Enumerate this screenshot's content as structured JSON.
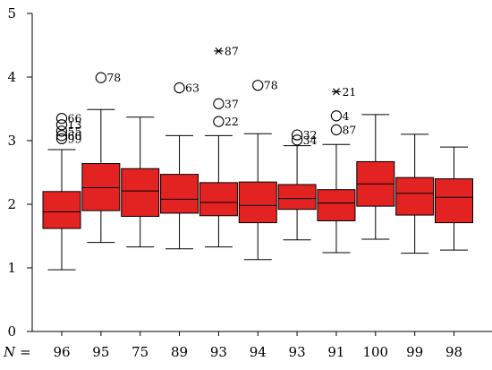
{
  "chart_data": {
    "type": "boxplot",
    "title": "",
    "xlabel": "",
    "ylabel": "",
    "ylim": [
      0,
      5
    ],
    "yticks": [
      "0",
      "1",
      "2",
      "3",
      "4",
      "5"
    ],
    "n_prefix": "N",
    "n_equals": "=",
    "box_color": "#e32222",
    "groups": [
      {
        "n": "96",
        "whisker_low": 0.97,
        "q1": 1.62,
        "median": 1.88,
        "q3": 2.2,
        "whisker_high": 2.86,
        "outliers": [
          {
            "y": 3.35,
            "label": "66",
            "marker": "circle"
          },
          {
            "y": 3.25,
            "label": "13",
            "marker": "circle"
          },
          {
            "y": 3.15,
            "label": "55",
            "marker": "circle"
          },
          {
            "y": 3.08,
            "label": "60",
            "marker": "circle"
          },
          {
            "y": 3.03,
            "label": "99",
            "marker": "circle"
          }
        ]
      },
      {
        "n": "95",
        "whisker_low": 1.4,
        "q1": 1.9,
        "median": 2.26,
        "q3": 2.64,
        "whisker_high": 3.49,
        "outliers": [
          {
            "y": 3.99,
            "label": "78",
            "marker": "circle"
          }
        ]
      },
      {
        "n": "75",
        "whisker_low": 1.33,
        "q1": 1.81,
        "median": 2.21,
        "q3": 2.56,
        "whisker_high": 3.37,
        "outliers": []
      },
      {
        "n": "89",
        "whisker_low": 1.3,
        "q1": 1.86,
        "median": 2.08,
        "q3": 2.47,
        "whisker_high": 3.08,
        "outliers": [
          {
            "y": 3.83,
            "label": "63",
            "marker": "circle"
          }
        ]
      },
      {
        "n": "93",
        "whisker_low": 1.33,
        "q1": 1.82,
        "median": 2.03,
        "q3": 2.34,
        "whisker_high": 3.08,
        "outliers": [
          {
            "y": 4.41,
            "label": "87",
            "marker": "star"
          },
          {
            "y": 3.58,
            "label": "37",
            "marker": "circle"
          },
          {
            "y": 3.3,
            "label": "22",
            "marker": "circle"
          }
        ]
      },
      {
        "n": "94",
        "whisker_low": 1.13,
        "q1": 1.71,
        "median": 1.98,
        "q3": 2.35,
        "whisker_high": 3.11,
        "outliers": [
          {
            "y": 3.87,
            "label": "78",
            "marker": "circle"
          }
        ]
      },
      {
        "n": "93",
        "whisker_low": 1.44,
        "q1": 1.92,
        "median": 2.09,
        "q3": 2.31,
        "whisker_high": 2.92,
        "outliers": [
          {
            "y": 3.09,
            "label": "32",
            "marker": "circle"
          },
          {
            "y": 3.01,
            "label": "34",
            "marker": "circle"
          }
        ]
      },
      {
        "n": "91",
        "whisker_low": 1.24,
        "q1": 1.74,
        "median": 2.02,
        "q3": 2.23,
        "whisker_high": 2.94,
        "outliers": [
          {
            "y": 3.77,
            "label": "21",
            "marker": "star"
          },
          {
            "y": 3.39,
            "label": "4",
            "marker": "circle"
          },
          {
            "y": 3.17,
            "label": "87",
            "marker": "circle"
          }
        ]
      },
      {
        "n": "100",
        "whisker_low": 1.45,
        "q1": 1.97,
        "median": 2.32,
        "q3": 2.67,
        "whisker_high": 3.41,
        "outliers": []
      },
      {
        "n": "99",
        "whisker_low": 1.23,
        "q1": 1.83,
        "median": 2.17,
        "q3": 2.42,
        "whisker_high": 3.1,
        "outliers": []
      },
      {
        "n": "98",
        "whisker_low": 1.28,
        "q1": 1.71,
        "median": 2.11,
        "q3": 2.4,
        "whisker_high": 2.9,
        "outliers": []
      }
    ]
  }
}
